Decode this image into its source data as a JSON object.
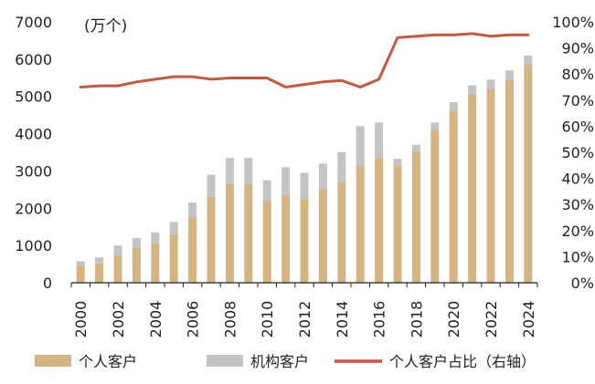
{
  "chart_data": {
    "type": "bar+line",
    "unit_label": "(万个)",
    "categories": [
      "2000",
      "2001",
      "2002",
      "2003",
      "2004",
      "2005",
      "2006",
      "2007",
      "2008",
      "2009",
      "2010",
      "2011",
      "2012",
      "2013",
      "2014",
      "2015",
      "2016",
      "2017",
      "2018",
      "2019",
      "2020",
      "2021",
      "2022",
      "2023",
      "2024"
    ],
    "x_tick_labels": [
      "2000",
      "2002",
      "2004",
      "2006",
      "2008",
      "2010",
      "2012",
      "2014",
      "2016",
      "2018",
      "2020",
      "2022",
      "2024"
    ],
    "stacked": true,
    "series": [
      {
        "name": "个人客户",
        "kind": "bar",
        "axis": "left",
        "color": "#D4B483",
        "values": [
          450,
          520,
          750,
          950,
          1050,
          1300,
          1750,
          2300,
          2650,
          2650,
          2200,
          2350,
          2250,
          2500,
          2700,
          3150,
          3350,
          3150,
          3500,
          4100,
          4600,
          5050,
          5200,
          5450,
          5850
        ]
      },
      {
        "name": "机构客户",
        "kind": "bar",
        "axis": "left",
        "color": "#C4C4C4",
        "values": [
          130,
          160,
          250,
          250,
          300,
          330,
          400,
          600,
          700,
          700,
          550,
          750,
          700,
          700,
          800,
          1050,
          950,
          180,
          200,
          200,
          250,
          250,
          250,
          250,
          250
        ]
      },
      {
        "name": "个人客户占比（右轴）",
        "kind": "line",
        "axis": "right",
        "color": "#C8573C",
        "values": [
          75,
          75.5,
          75.5,
          77,
          78,
          79,
          79,
          78,
          78.5,
          78.5,
          78.5,
          75,
          76,
          77,
          77.5,
          75,
          78,
          94,
          94.5,
          95,
          95,
          95.5,
          94.5,
          95,
          95
        ]
      }
    ],
    "y_left": {
      "min": 0,
      "max": 7000,
      "ticks": [
        0,
        1000,
        2000,
        3000,
        4000,
        5000,
        6000,
        7000
      ]
    },
    "y_right": {
      "min": 0,
      "max": 100,
      "ticks": [
        "0%",
        "10%",
        "20%",
        "30%",
        "40%",
        "50%",
        "60%",
        "70%",
        "80%",
        "90%",
        "100%"
      ]
    },
    "grid": false,
    "legend_position": "bottom"
  }
}
